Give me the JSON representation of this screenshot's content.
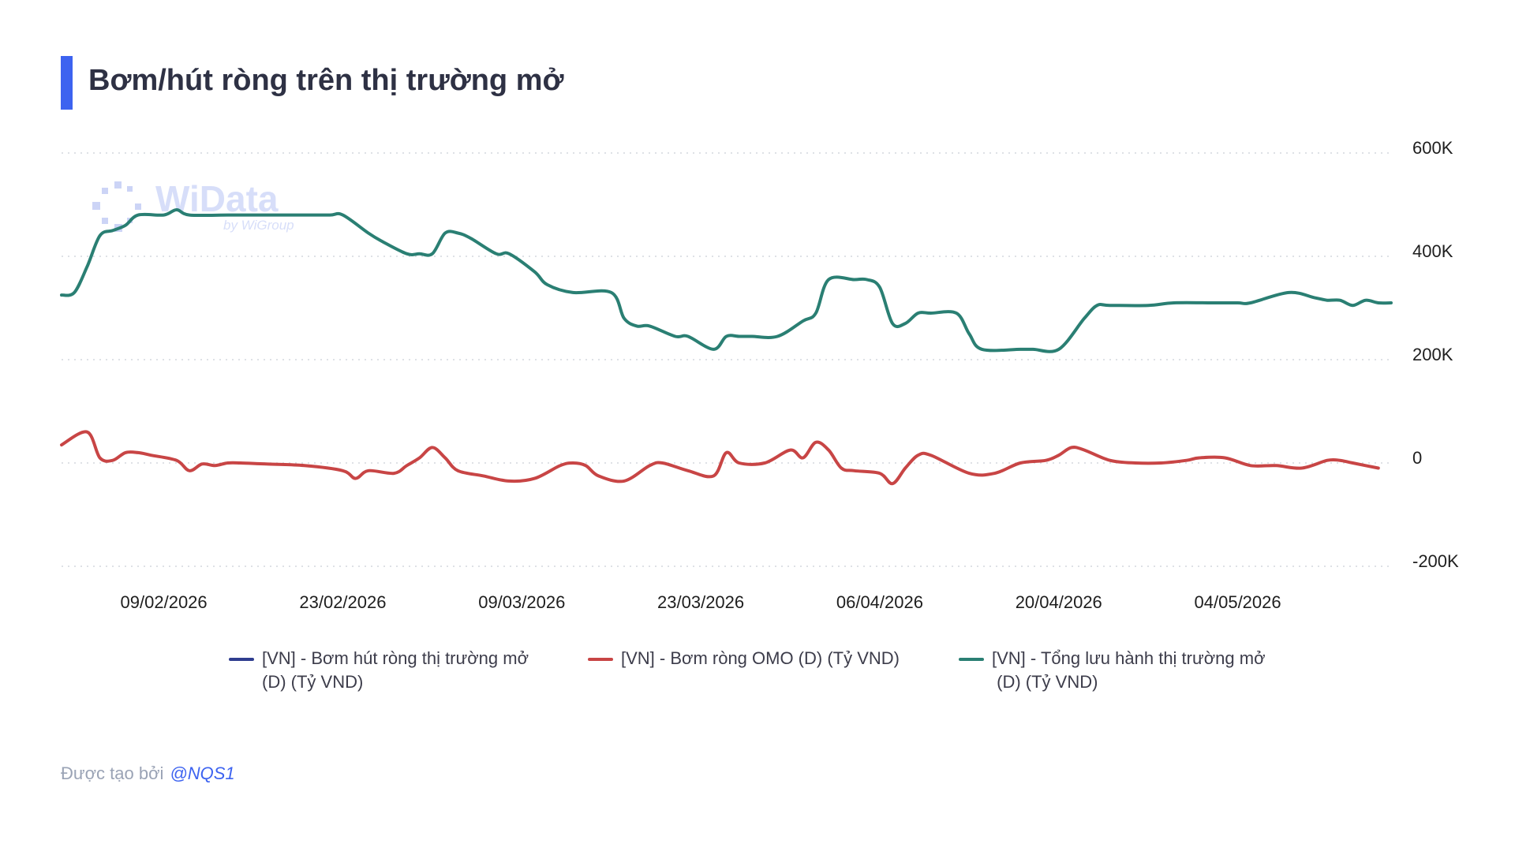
{
  "title": "Bơm/hút ròng trên thị trường mở",
  "watermark": {
    "brand": "WiData",
    "sub": "by WiGroup"
  },
  "footer": {
    "label": "Được tạo bởi",
    "user": "@NQS1"
  },
  "legend": [
    {
      "label": "[VN] - Bơm hút ròng thị trường mở (D) (Tỷ VND)",
      "line1": "[VN] - Bơm hút ròng thị trường mở",
      "line2": "(D) (Tỷ VND)",
      "color": "#2f3d8f"
    },
    {
      "label": "[VN] - Bơm ròng OMO (D) (Tỷ VND)",
      "line1": "[VN] - Bơm ròng OMO (D) (Tỷ VND)",
      "line2": "",
      "color": "#c84545"
    },
    {
      "label": "[VN] - Tổng lưu hành thị trường mở (D) (Tỷ VND)",
      "line1": "[VN] - Tổng lưu hành thị trường mở",
      "line2": " (D) (Tỷ VND)",
      "color": "#2a7f73"
    }
  ],
  "chart_data": {
    "type": "line",
    "title": "Bơm/hút ròng trên thị trường mở",
    "xlabel": "",
    "ylabel": "",
    "x_axis": {
      "type": "date",
      "ticks": [
        "09/02/2026",
        "23/02/2026",
        "09/03/2026",
        "23/03/2026",
        "06/04/2026",
        "20/04/2026",
        "04/05/2026"
      ],
      "range": [
        "2026-02-01",
        "2026-05-16"
      ]
    },
    "y_axis": {
      "position": "right",
      "ticks": [
        "600K",
        "400K",
        "200K",
        "0",
        "-200K"
      ],
      "tick_values": [
        600000,
        400000,
        200000,
        0,
        -200000
      ],
      "range": [
        -200000,
        600000
      ]
    },
    "grid": "horizontal-dotted",
    "legend_position": "bottom",
    "series": [
      {
        "name": "[VN] - Bơm hút ròng thị trường mở (D) (Tỷ VND)",
        "color": "#2f3d8f",
        "x": [],
        "values": []
      },
      {
        "name": "[VN] - Bơm ròng OMO (D) (Tỷ VND)",
        "color": "#c84545",
        "x": [
          "2026-02-01",
          "2026-02-03",
          "2026-04-02",
          "2026-02-04",
          "2026-02-05",
          "2026-02-06",
          "2026-02-07",
          "2026-02-08",
          "2026-02-10",
          "2026-02-11",
          "2026-02-12",
          "2026-02-13",
          "2026-02-14",
          "2026-02-15",
          "2026-02-17",
          "2026-02-20",
          "2026-02-23",
          "2026-02-24",
          "2026-02-25",
          "2026-02-27",
          "2026-02-28",
          "2026-03-01",
          "2026-03-02",
          "2026-03-03",
          "2026-03-04",
          "2026-03-06",
          "2026-03-08",
          "2026-03-10",
          "2026-03-12",
          "2026-03-13",
          "2026-03-14",
          "2026-03-15",
          "2026-03-17",
          "2026-03-19",
          "2026-03-20",
          "2026-03-22",
          "2026-03-24",
          "2026-03-25",
          "2026-03-26",
          "2026-03-28",
          "2026-03-30",
          "2026-03-31",
          "2026-04-01",
          "2026-04-03",
          "2026-04-04",
          "2026-04-06",
          "2026-04-07",
          "2026-04-08",
          "2026-04-09",
          "2026-04-10",
          "2026-04-13",
          "2026-04-15",
          "2026-04-17",
          "2026-04-19",
          "2026-04-20",
          "2026-04-21",
          "2026-04-22",
          "2026-04-24",
          "2026-04-26",
          "2026-04-28",
          "2026-04-30",
          "2026-05-01",
          "2026-05-03",
          "2026-05-05",
          "2026-05-07",
          "2026-05-09",
          "2026-05-11",
          "2026-05-12",
          "2026-05-13",
          "2026-05-15"
        ],
        "values": [
          35000,
          60000,
          25000,
          10000,
          5000,
          20000,
          20000,
          15000,
          5000,
          -15000,
          -2000,
          -5000,
          0,
          0,
          -2000,
          -5000,
          -15000,
          -30000,
          -15000,
          -20000,
          -5000,
          10000,
          30000,
          10000,
          -15000,
          -25000,
          -35000,
          -30000,
          -5000,
          0,
          -5000,
          -25000,
          -35000,
          -5000,
          0,
          -15000,
          -25000,
          20000,
          0,
          0,
          25000,
          10000,
          40000,
          -10000,
          -15000,
          -20000,
          -40000,
          -10000,
          15000,
          15000,
          -20000,
          -20000,
          0,
          5000,
          15000,
          30000,
          25000,
          5000,
          0,
          0,
          5000,
          10000,
          10000,
          -5000,
          -5000,
          -10000,
          5000,
          5000,
          0,
          -10000
        ]
      },
      {
        "name": "[VN] - Tổng lưu hành thị trường mở (D) (Tỷ VND)",
        "color": "#2a7f73",
        "x": [
          "2026-02-01",
          "2026-02-02",
          "2026-02-03",
          "2026-02-04",
          "2026-02-05",
          "2026-02-06",
          "2026-02-07",
          "2026-02-09",
          "2026-02-10",
          "2026-02-11",
          "2026-02-14",
          "2026-02-16",
          "2026-02-18",
          "2026-02-20",
          "2026-02-22",
          "2026-02-23",
          "2026-02-25",
          "2026-02-26",
          "2026-02-28",
          "2026-03-01",
          "2026-03-02",
          "2026-03-03",
          "2026-03-04",
          "2026-03-05",
          "2026-03-07",
          "2026-03-08",
          "2026-03-10",
          "2026-03-11",
          "2026-03-13",
          "2026-03-16",
          "2026-03-17",
          "2026-03-18",
          "2026-03-19",
          "2026-03-21",
          "2026-03-22",
          "2026-03-24",
          "2026-03-25",
          "2026-03-26",
          "2026-03-27",
          "2026-03-29",
          "2026-03-31",
          "2026-04-01",
          "2026-04-02",
          "2026-04-04",
          "2026-04-05",
          "2026-04-06",
          "2026-04-07",
          "2026-04-08",
          "2026-04-09",
          "2026-04-10",
          "2026-04-12",
          "2026-04-13",
          "2026-04-14",
          "2026-04-17",
          "2026-04-18",
          "2026-04-20",
          "2026-04-22",
          "2026-04-23",
          "2026-04-24",
          "2026-04-27",
          "2026-04-29",
          "2026-05-02",
          "2026-05-04",
          "2026-05-05",
          "2026-05-08",
          "2026-05-10",
          "2026-05-11",
          "2026-05-12",
          "2026-05-13",
          "2026-05-14",
          "2026-05-15",
          "2026-05-16"
        ],
        "values": [
          325000,
          330000,
          380000,
          440000,
          450000,
          460000,
          480000,
          480000,
          490000,
          480000,
          480000,
          480000,
          480000,
          480000,
          480000,
          480000,
          445000,
          430000,
          405000,
          405000,
          405000,
          445000,
          445000,
          435000,
          405000,
          405000,
          370000,
          345000,
          330000,
          330000,
          280000,
          265000,
          265000,
          245000,
          245000,
          220000,
          245000,
          245000,
          245000,
          245000,
          275000,
          290000,
          355000,
          355000,
          355000,
          340000,
          270000,
          270000,
          290000,
          290000,
          290000,
          250000,
          220000,
          220000,
          220000,
          220000,
          280000,
          305000,
          305000,
          305000,
          310000,
          310000,
          310000,
          310000,
          330000,
          320000,
          315000,
          315000,
          305000,
          315000,
          310000,
          310000
        ]
      }
    ]
  }
}
